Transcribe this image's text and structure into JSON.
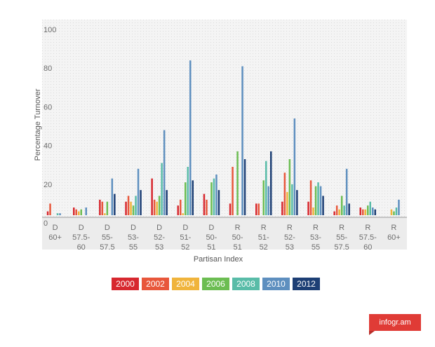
{
  "chart_data": {
    "type": "bar",
    "xlabel": "Partisan Index",
    "ylabel": "Percentage Turnover",
    "ylim": [
      0,
      100
    ],
    "yticks": [
      "100",
      "80",
      "60",
      "40",
      "20",
      "0"
    ],
    "grid": true,
    "legend_position": "bottom",
    "categories": [
      [
        "D",
        "60+"
      ],
      [
        "D",
        "57.5-",
        "60"
      ],
      [
        "D",
        "55-",
        "57.5"
      ],
      [
        "D",
        "53-",
        "55"
      ],
      [
        "D",
        "52-",
        "53"
      ],
      [
        "D",
        "51-",
        "52"
      ],
      [
        "D",
        "50-",
        "51"
      ],
      [
        "R",
        "50-",
        "51"
      ],
      [
        "R",
        "51-",
        "52"
      ],
      [
        "R",
        "52-",
        "53"
      ],
      [
        "R",
        "53-",
        "55"
      ],
      [
        "R",
        "55-",
        "57.5"
      ],
      [
        "R",
        "57.5-",
        "60"
      ],
      [
        "R",
        "60+"
      ]
    ],
    "series": [
      {
        "name": "2000",
        "color": "#d7282f",
        "values": [
          2,
          4,
          8,
          7,
          19,
          5,
          11,
          6,
          6,
          7,
          7,
          2,
          4,
          0
        ]
      },
      {
        "name": "2002",
        "color": "#e8573b",
        "values": [
          6,
          3,
          7,
          10,
          8,
          8,
          8,
          25,
          6,
          22,
          18,
          5,
          3,
          0
        ]
      },
      {
        "name": "2004",
        "color": "#f0b43c",
        "values": [
          0,
          2,
          1,
          7,
          7,
          1,
          0,
          0,
          0,
          12,
          4,
          3,
          3,
          3
        ]
      },
      {
        "name": "2006",
        "color": "#6cbd52",
        "values": [
          0,
          3,
          7,
          5,
          10,
          17,
          17,
          33,
          18,
          29,
          15,
          10,
          5,
          2
        ]
      },
      {
        "name": "2008",
        "color": "#59bca8",
        "values": [
          1,
          0,
          0,
          10,
          27,
          25,
          19,
          0,
          28,
          16,
          17,
          5,
          7,
          4
        ]
      },
      {
        "name": "2010",
        "color": "#5e8fbf",
        "values": [
          1,
          4,
          19,
          24,
          44,
          80,
          21,
          77,
          15,
          50,
          15,
          24,
          4,
          8
        ]
      },
      {
        "name": "2012",
        "color": "#1d3f75",
        "values": [
          0,
          0,
          11,
          13,
          13,
          18,
          13,
          29,
          33,
          13,
          10,
          6,
          3,
          0
        ]
      }
    ]
  },
  "legend": [
    "2000",
    "2002",
    "2004",
    "2006",
    "2008",
    "2010",
    "2012"
  ],
  "brand": "infogr.am"
}
